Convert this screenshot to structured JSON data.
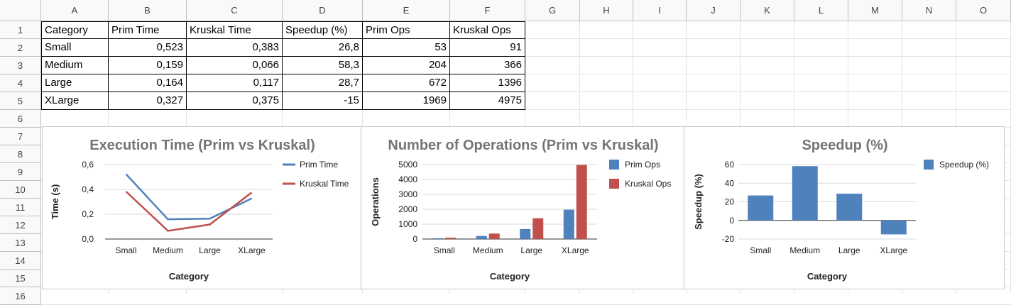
{
  "spreadsheet": {
    "columns": [
      "A",
      "B",
      "C",
      "D",
      "E",
      "F",
      "G",
      "H",
      "I",
      "J",
      "K",
      "L",
      "M",
      "N",
      "O"
    ],
    "rows": [
      "1",
      "2",
      "3",
      "4",
      "5",
      "6",
      "7",
      "8",
      "9",
      "10",
      "11",
      "12",
      "13",
      "14",
      "15",
      "16"
    ],
    "table": {
      "headers": [
        "Category",
        "Prim Time",
        "Kruskal Time",
        "Speedup (%)",
        "Prim Ops",
        "Kruskal Ops"
      ],
      "rows": [
        [
          "Small",
          "0,523",
          "0,383",
          "26,8",
          "53",
          "91"
        ],
        [
          "Medium",
          "0,159",
          "0,066",
          "58,3",
          "204",
          "366"
        ],
        [
          "Large",
          "0,164",
          "0,117",
          "28,7",
          "672",
          "1396"
        ],
        [
          "XLarge",
          "0,327",
          "0,375",
          "-15",
          "1969",
          "4975"
        ]
      ]
    }
  },
  "colors": {
    "prim": "#4f81bd",
    "kruskal": "#c0504d",
    "speedup": "#4f81bd"
  },
  "chart_data": [
    {
      "type": "line",
      "title": "Execution Time (Prim vs Kruskal)",
      "xlabel": "Category",
      "ylabel": "Time (s)",
      "categories": [
        "Small",
        "Medium",
        "Large",
        "XLarge"
      ],
      "series": [
        {
          "name": "Prim Time",
          "values": [
            0.523,
            0.159,
            0.164,
            0.327
          ]
        },
        {
          "name": "Kruskal Time",
          "values": [
            0.383,
            0.066,
            0.117,
            0.375
          ]
        }
      ],
      "ylim": [
        0,
        0.6
      ],
      "yticks": [
        "0,0",
        "0,2",
        "0,4",
        "0,6"
      ],
      "legend": "right"
    },
    {
      "type": "bar",
      "title": "Number of Operations (Prim vs Kruskal)",
      "xlabel": "Category",
      "ylabel": "Operations",
      "categories": [
        "Small",
        "Medium",
        "Large",
        "XLarge"
      ],
      "series": [
        {
          "name": "Prim Ops",
          "values": [
            53,
            204,
            672,
            1969
          ]
        },
        {
          "name": "Kruskal Ops",
          "values": [
            91,
            366,
            1396,
            4975
          ]
        }
      ],
      "ylim": [
        0,
        5000
      ],
      "yticks": [
        "0",
        "1000",
        "2000",
        "3000",
        "4000",
        "5000"
      ],
      "legend": "right"
    },
    {
      "type": "bar",
      "title": "Speedup (%)",
      "xlabel": "Category",
      "ylabel": "Speedup (%)",
      "categories": [
        "Small",
        "Medium",
        "Large",
        "XLarge"
      ],
      "series": [
        {
          "name": "Speedup (%)",
          "values": [
            26.8,
            58.3,
            28.7,
            -15
          ]
        }
      ],
      "ylim": [
        -20,
        60
      ],
      "yticks": [
        "-20",
        "0",
        "20",
        "40",
        "60"
      ],
      "legend": "right"
    }
  ]
}
